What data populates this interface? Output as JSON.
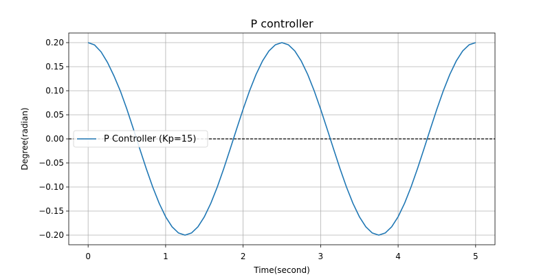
{
  "chart_data": {
    "type": "line",
    "title": "P controller",
    "xlabel": "Time(second)",
    "ylabel": "Degree(radian)",
    "xlim": [
      -0.25,
      5.25
    ],
    "ylim": [
      -0.22,
      0.22
    ],
    "x_ticks": [
      0,
      1,
      2,
      3,
      4,
      5
    ],
    "x_tick_labels": [
      "0",
      "1",
      "2",
      "3",
      "4",
      "5"
    ],
    "y_ticks": [
      0.2,
      0.15,
      0.1,
      0.05,
      0.0,
      -0.05,
      -0.1,
      -0.15,
      -0.2
    ],
    "y_tick_labels": [
      "0.20",
      "0.15",
      "0.10",
      "0.05",
      "0.00",
      "−0.05",
      "−0.10",
      "−0.15",
      "−0.20"
    ],
    "grid": true,
    "legend_position": "center-left",
    "series": [
      {
        "name": "P Controller (Kp=15)",
        "color": "#1f77b4",
        "style": "solid",
        "x": [
          0,
          0.0833,
          0.1667,
          0.25,
          0.3333,
          0.4167,
          0.5,
          0.5833,
          0.6667,
          0.75,
          0.8333,
          0.9167,
          1.0,
          1.0833,
          1.1667,
          1.25,
          1.3333,
          1.4167,
          1.5,
          1.5833,
          1.6667,
          1.75,
          1.8333,
          1.9167,
          2.0,
          2.0833,
          2.1667,
          2.25,
          2.3333,
          2.4167,
          2.5,
          2.5833,
          2.6667,
          2.75,
          2.8333,
          2.9167,
          3.0,
          3.0833,
          3.1667,
          3.25,
          3.3333,
          3.4167,
          3.5,
          3.5833,
          3.6667,
          3.75,
          3.8333,
          3.9167,
          4.0,
          4.0833,
          4.1667,
          4.25,
          4.3333,
          4.4167,
          4.5,
          4.5833,
          4.6667,
          4.75,
          4.8333,
          4.9167,
          5.0
        ],
        "y": [
          0.2,
          0.1951,
          0.1809,
          0.1588,
          0.1309,
          0.0991,
          0.0618,
          0.0209,
          -0.0209,
          -0.0618,
          -0.1,
          -0.1338,
          -0.1618,
          -0.1827,
          -0.1956,
          -0.2,
          -0.1956,
          -0.1827,
          -0.1618,
          -0.1338,
          -0.1,
          -0.0618,
          -0.0209,
          0.0209,
          0.0618,
          0.1,
          0.1338,
          0.1618,
          0.1827,
          0.1956,
          0.2,
          0.1956,
          0.1827,
          0.1618,
          0.1338,
          0.1,
          0.0618,
          0.0209,
          -0.0209,
          -0.0618,
          -0.1,
          -0.1338,
          -0.1618,
          -0.1827,
          -0.1956,
          -0.2,
          -0.1956,
          -0.1827,
          -0.1618,
          -0.1338,
          -0.1,
          -0.0618,
          -0.0209,
          0.0209,
          0.0618,
          0.1,
          0.1338,
          0.1618,
          0.1827,
          0.1956,
          0.2
        ]
      }
    ],
    "reference_line": {
      "y": 0.0,
      "color": "#000000",
      "style": "dashed"
    }
  }
}
